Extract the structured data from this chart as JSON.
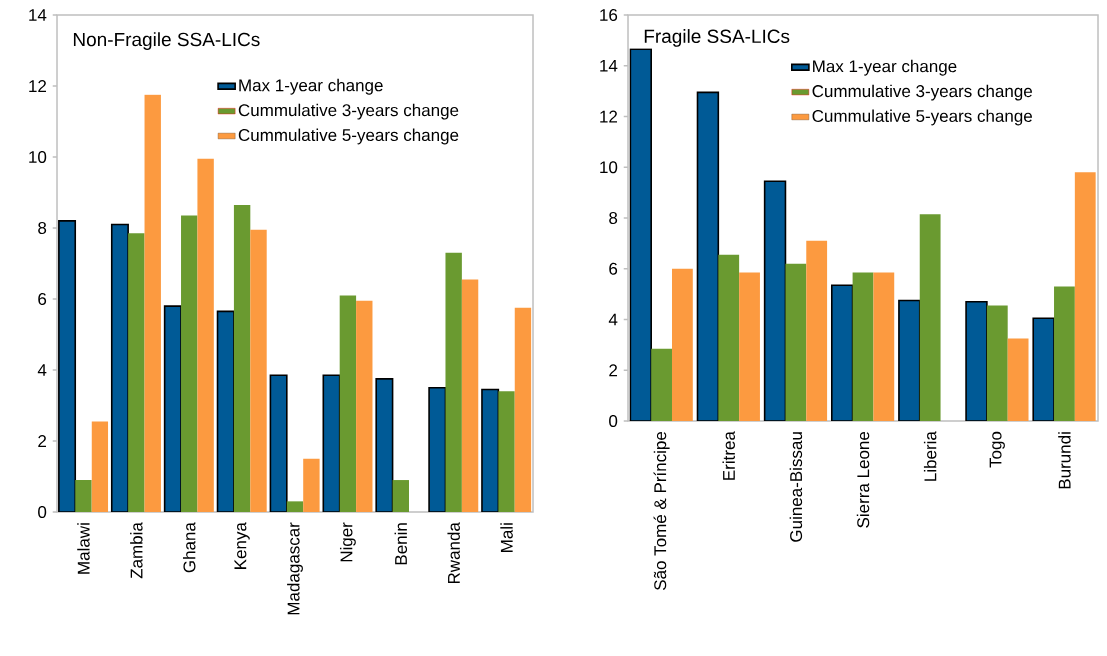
{
  "chart_data": [
    {
      "type": "bar",
      "title": "Non-Fragile SSA-LICs",
      "categories": [
        "Malawi",
        "Zambia",
        "Ghana",
        "Kenya",
        "Madagascar",
        "Niger",
        "Benin",
        "Rwanda",
        "Mali"
      ],
      "series": [
        {
          "name": "Max 1-year change",
          "color": "#005a96",
          "values": [
            8.2,
            8.1,
            5.8,
            5.65,
            3.85,
            3.85,
            3.75,
            3.5,
            3.45
          ]
        },
        {
          "name": "Cummulative  3-years change",
          "color": "#6a9a30",
          "values": [
            0.9,
            7.85,
            8.35,
            8.65,
            0.3,
            6.1,
            0.9,
            7.3,
            3.4
          ]
        },
        {
          "name": "Cummulative  5-years change",
          "color": "#fc9a40",
          "values": [
            2.55,
            11.75,
            9.95,
            7.95,
            1.5,
            5.95,
            null,
            6.55,
            5.75
          ]
        }
      ],
      "ylim": [
        0,
        14
      ],
      "yticks": [
        0,
        2,
        4,
        6,
        8,
        10,
        12,
        14
      ],
      "legend": "top right"
    },
    {
      "type": "bar",
      "title": "Fragile SSA-LICs",
      "categories": [
        "São Tomé & Príncipe",
        "Eritrea",
        "Guinea-Bissau",
        "Sierra Leone",
        "Liberia",
        "Togo",
        "Burundi"
      ],
      "series": [
        {
          "name": "Max 1-year change",
          "color": "#005a96",
          "values": [
            14.65,
            12.95,
            9.45,
            5.35,
            4.75,
            4.7,
            4.05
          ]
        },
        {
          "name": "Cummulative  3-years change",
          "color": "#6a9a30",
          "values": [
            2.85,
            6.55,
            6.2,
            5.85,
            8.15,
            4.55,
            5.3
          ]
        },
        {
          "name": "Cummulative  5-years change",
          "color": "#fc9a40",
          "values": [
            6.0,
            5.85,
            7.1,
            5.85,
            null,
            3.25,
            9.8
          ]
        }
      ],
      "ylim": [
        0,
        16
      ],
      "yticks": [
        0,
        2,
        4,
        6,
        8,
        10,
        12,
        14,
        16
      ],
      "legend": "top right"
    }
  ]
}
